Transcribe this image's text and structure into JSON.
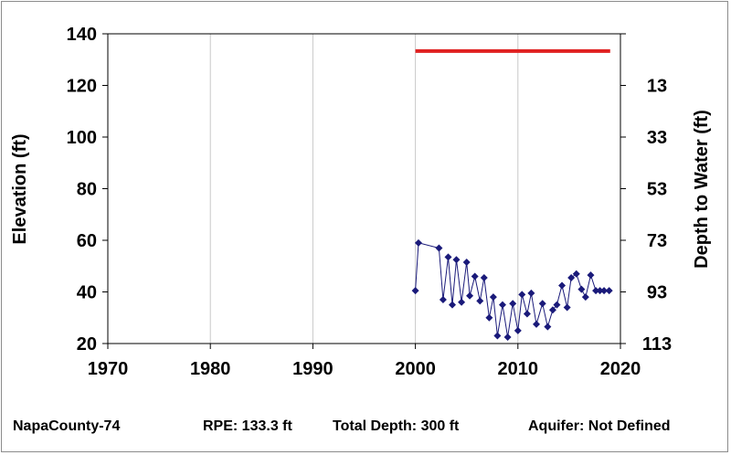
{
  "chart_data": {
    "type": "line",
    "xlabel": "",
    "ylabel": "Elevation (ft)",
    "y2label": "Depth to Water (ft)",
    "xlim": [
      1970,
      2020
    ],
    "ylim": [
      20,
      140
    ],
    "x_ticks": [
      "1970",
      "1980",
      "1990",
      "2000",
      "2010",
      "2020"
    ],
    "y_ticks": [
      "20",
      "40",
      "60",
      "80",
      "100",
      "120",
      "140"
    ],
    "y2_ticks": [
      "113",
      "93",
      "73",
      "53",
      "33",
      "13"
    ],
    "grid": "vertical",
    "series": [
      {
        "color": "#1a1a7a",
        "marker": "diamond",
        "x": [
          2000.0,
          2000.3,
          2002.3,
          2002.7,
          2003.2,
          2003.6,
          2004.0,
          2004.5,
          2005.0,
          2005.3,
          2005.8,
          2006.3,
          2006.7,
          2007.2,
          2007.6,
          2008.0,
          2008.5,
          2009.0,
          2009.5,
          2010.0,
          2010.4,
          2010.9,
          2011.3,
          2011.8,
          2012.4,
          2012.9,
          2013.4,
          2013.8,
          2014.3,
          2014.8,
          2015.2,
          2015.7,
          2016.2,
          2016.6,
          2017.1,
          2017.6,
          2018.0,
          2018.4,
          2018.9
        ],
        "values": [
          40.5,
          59,
          57,
          37,
          53.5,
          35,
          52.5,
          36,
          51.5,
          38.5,
          46,
          36.5,
          45.5,
          30,
          38,
          23,
          35,
          22.5,
          35.5,
          25,
          39,
          31.5,
          39.5,
          27.5,
          35.5,
          26.5,
          33,
          35,
          42.5,
          34,
          45.5,
          47,
          41,
          38,
          46.5,
          40.5,
          40.5,
          40.5,
          40.5
        ]
      }
    ],
    "rpe_line": {
      "value": 133.3,
      "x": [
        2000,
        2019
      ],
      "color": "#e02020"
    }
  },
  "footer": {
    "well_id": "NapaCounty-74",
    "rpe": "RPE: 133.3 ft",
    "total_depth": "Total Depth: 300 ft",
    "aquifer": "Aquifer: Not Defined"
  }
}
